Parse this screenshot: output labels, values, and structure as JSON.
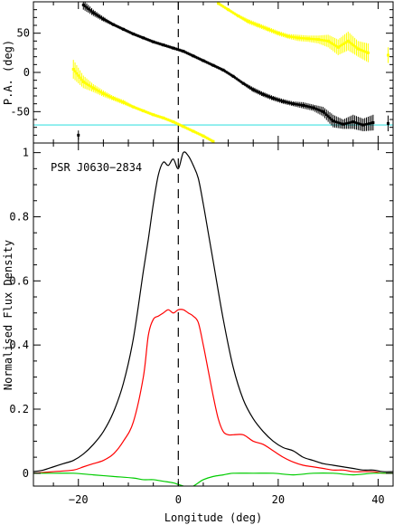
{
  "chart_data": [
    {
      "type": "scatter",
      "panel": "top",
      "title": "",
      "ylabel": "P.A. (deg)",
      "xlabel": "",
      "xlim": [
        -29,
        43
      ],
      "ylim": [
        -90,
        90
      ],
      "yticks": [
        50,
        0,
        -50
      ],
      "ytick_labels": [
        "50",
        "0",
        "-50"
      ],
      "reference_lines": [
        {
          "orientation": "horizontal",
          "y": -67,
          "color": "#40e0e0"
        },
        {
          "orientation": "vertical",
          "x": 0,
          "style": "dashed",
          "color": "#000000"
        }
      ],
      "series": [
        {
          "color": "#000000",
          "points": [
            {
              "x": -19.0,
              "y": 86,
              "err": 6
            },
            {
              "x": -17.0,
              "y": 76,
              "err": 4
            },
            {
              "x": -15.0,
              "y": 68,
              "err": 3
            },
            {
              "x": -13.0,
              "y": 61,
              "err": 2
            },
            {
              "x": -11.0,
              "y": 55,
              "err": 2
            },
            {
              "x": -9.0,
              "y": 49,
              "err": 2
            },
            {
              "x": -7.0,
              "y": 44,
              "err": 2
            },
            {
              "x": -5.0,
              "y": 39,
              "err": 2
            },
            {
              "x": -3.0,
              "y": 35,
              "err": 2
            },
            {
              "x": -1.0,
              "y": 31,
              "err": 2
            },
            {
              "x": 1.0,
              "y": 27,
              "err": 2
            },
            {
              "x": 3.0,
              "y": 21,
              "err": 2
            },
            {
              "x": 5.0,
              "y": 15,
              "err": 2
            },
            {
              "x": 7.0,
              "y": 9,
              "err": 2
            },
            {
              "x": 9.0,
              "y": 3,
              "err": 2
            },
            {
              "x": 11.0,
              "y": -5,
              "err": 2
            },
            {
              "x": 13.0,
              "y": -14,
              "err": 2
            },
            {
              "x": 15.0,
              "y": -22,
              "err": 3
            },
            {
              "x": 17.0,
              "y": -28,
              "err": 3
            },
            {
              "x": 19.0,
              "y": -33,
              "err": 3
            },
            {
              "x": 21.0,
              "y": -37,
              "err": 3
            },
            {
              "x": 23.0,
              "y": -40,
              "err": 3
            },
            {
              "x": 25.0,
              "y": -42,
              "err": 4
            },
            {
              "x": 27.0,
              "y": -45,
              "err": 4
            },
            {
              "x": 29.0,
              "y": -50,
              "err": 6
            },
            {
              "x": 31.0,
              "y": -62,
              "err": 8
            },
            {
              "x": 33.0,
              "y": -66,
              "err": 6
            },
            {
              "x": 35.0,
              "y": -63,
              "err": 9
            },
            {
              "x": 37.0,
              "y": -67,
              "err": 8
            },
            {
              "x": 39.0,
              "y": -64,
              "err": 10
            },
            {
              "x": 42.0,
              "y": -65,
              "err": 10
            },
            {
              "x": -20.0,
              "y": -80,
              "err": 6
            }
          ]
        },
        {
          "color": "#ffff00",
          "points": [
            {
              "x": -21.0,
              "y": 4,
              "err": 12
            },
            {
              "x": -19.0,
              "y": -12,
              "err": 8
            },
            {
              "x": -17.0,
              "y": -20,
              "err": 5
            },
            {
              "x": -15.0,
              "y": -27,
              "err": 4
            },
            {
              "x": -13.0,
              "y": -33,
              "err": 3
            },
            {
              "x": -11.0,
              "y": -38,
              "err": 3
            },
            {
              "x": -9.0,
              "y": -44,
              "err": 2
            },
            {
              "x": -7.0,
              "y": -49,
              "err": 2
            },
            {
              "x": -5.0,
              "y": -54,
              "err": 2
            },
            {
              "x": -3.0,
              "y": -58,
              "err": 2
            },
            {
              "x": -1.0,
              "y": -63,
              "err": 2
            },
            {
              "x": 1.0,
              "y": -69,
              "err": 2
            },
            {
              "x": 3.0,
              "y": -75,
              "err": 2
            },
            {
              "x": 5.0,
              "y": -81,
              "err": 2
            },
            {
              "x": 7.0,
              "y": -88,
              "err": 2
            },
            {
              "x": 8.0,
              "y": 88,
              "err": 2
            },
            {
              "x": 10.0,
              "y": 80,
              "err": 2
            },
            {
              "x": 12.0,
              "y": 72,
              "err": 2
            },
            {
              "x": 14.0,
              "y": 65,
              "err": 3
            },
            {
              "x": 16.0,
              "y": 60,
              "err": 3
            },
            {
              "x": 18.0,
              "y": 55,
              "err": 3
            },
            {
              "x": 20.0,
              "y": 50,
              "err": 3
            },
            {
              "x": 22.0,
              "y": 46,
              "err": 3
            },
            {
              "x": 24.0,
              "y": 44,
              "err": 4
            },
            {
              "x": 26.0,
              "y": 43,
              "err": 4
            },
            {
              "x": 28.0,
              "y": 42,
              "err": 5
            },
            {
              "x": 30.0,
              "y": 40,
              "err": 8
            },
            {
              "x": 32.0,
              "y": 32,
              "err": 10
            },
            {
              "x": 34.0,
              "y": 40,
              "err": 12
            },
            {
              "x": 36.0,
              "y": 30,
              "err": 10
            },
            {
              "x": 38.0,
              "y": 25,
              "err": 12
            },
            {
              "x": 42.0,
              "y": 22,
              "err": 10
            }
          ]
        }
      ]
    },
    {
      "type": "line",
      "panel": "bottom",
      "title": "PSR J0630−2834",
      "xlabel": "Longitude (deg)",
      "ylabel": "Normalised Flux Density",
      "xlim": [
        -29,
        43
      ],
      "ylim": [
        -0.04,
        1.03
      ],
      "xticks": [
        -20,
        0,
        20,
        40
      ],
      "xtick_labels": [
        "−20",
        "0",
        "20",
        "40"
      ],
      "yticks": [
        0,
        0.2,
        0.4,
        0.6,
        0.8,
        1
      ],
      "ytick_labels": [
        "0",
        "0.2",
        "0.4",
        "0.6",
        "0.8",
        "1"
      ],
      "reference_lines": [
        {
          "orientation": "vertical",
          "x": 0,
          "style": "dashed",
          "color": "#000000"
        }
      ],
      "series": [
        {
          "color": "#000000",
          "x": [
            -29,
            -27,
            -25,
            -23,
            -21,
            -19,
            -17,
            -15,
            -13,
            -11,
            -9,
            -7,
            -6,
            -5,
            -4,
            -3,
            -2,
            -1,
            0,
            1,
            2,
            3,
            4,
            5,
            6,
            7,
            9,
            11,
            13,
            15,
            17,
            19,
            21,
            23,
            25,
            27,
            29,
            31,
            33,
            35,
            37,
            39,
            41,
            43
          ],
          "y": [
            0.005,
            0.01,
            0.02,
            0.03,
            0.04,
            0.06,
            0.09,
            0.13,
            0.19,
            0.28,
            0.42,
            0.63,
            0.73,
            0.84,
            0.93,
            0.97,
            0.96,
            0.98,
            0.95,
            1.0,
            0.99,
            0.96,
            0.92,
            0.84,
            0.75,
            0.66,
            0.48,
            0.33,
            0.23,
            0.17,
            0.13,
            0.1,
            0.08,
            0.07,
            0.05,
            0.04,
            0.03,
            0.025,
            0.02,
            0.015,
            0.01,
            0.01,
            0.005,
            0.005
          ]
        },
        {
          "color": "#ff0000",
          "x": [
            -29,
            -25,
            -21,
            -19,
            -17,
            -15,
            -13,
            -11,
            -9,
            -7,
            -6,
            -5,
            -4,
            -3,
            -2,
            -1,
            0,
            1,
            2,
            3,
            4,
            5,
            6,
            7,
            8,
            9,
            10,
            11,
            13,
            15,
            17,
            19,
            21,
            23,
            25,
            27,
            29,
            31,
            33,
            35,
            37,
            39,
            41,
            43
          ],
          "y": [
            0.0,
            0.005,
            0.01,
            0.02,
            0.03,
            0.04,
            0.06,
            0.1,
            0.16,
            0.3,
            0.43,
            0.48,
            0.49,
            0.5,
            0.51,
            0.5,
            0.51,
            0.51,
            0.5,
            0.49,
            0.47,
            0.4,
            0.32,
            0.24,
            0.17,
            0.13,
            0.12,
            0.12,
            0.12,
            0.1,
            0.09,
            0.07,
            0.05,
            0.035,
            0.025,
            0.02,
            0.015,
            0.01,
            0.01,
            0.005,
            0.005,
            0.005,
            0.0,
            0.0
          ]
        },
        {
          "color": "#00cc00",
          "x": [
            -29,
            -25,
            -21,
            -17,
            -13,
            -9,
            -7,
            -5,
            -3,
            -1,
            0,
            1,
            2,
            3,
            4,
            5,
            7,
            9,
            11,
            15,
            19,
            23,
            27,
            31,
            35,
            39,
            43
          ],
          "y": [
            0.0,
            0.0,
            0.0,
            -0.005,
            -0.01,
            -0.015,
            -0.02,
            -0.02,
            -0.025,
            -0.03,
            -0.035,
            -0.04,
            -0.045,
            -0.04,
            -0.03,
            -0.02,
            -0.01,
            -0.005,
            0.0,
            0.0,
            0.0,
            -0.005,
            0.0,
            0.0,
            -0.005,
            0.0,
            0.0
          ]
        }
      ]
    }
  ]
}
